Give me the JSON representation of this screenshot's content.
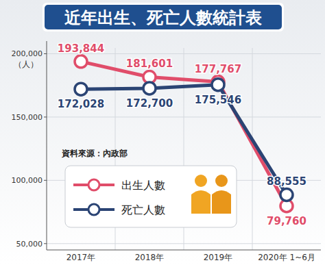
{
  "chart_data": {
    "type": "line",
    "title": "近年出生、死亡人數統計表",
    "y_label": "（人）",
    "source": "資料來源：內政部",
    "categories": [
      "2017年",
      "2018年",
      "2019年",
      "2020年 1~6月"
    ],
    "series": [
      {
        "name": "出生人數",
        "color": "#e04d6a",
        "marker": "circle",
        "values": [
          193844,
          181601,
          177767,
          79760
        ],
        "value_labels": [
          "193,844",
          "181,601",
          "177,767",
          "79,760"
        ]
      },
      {
        "name": "死亡人數",
        "color": "#2b4474",
        "marker": "circle",
        "values": [
          172028,
          172700,
          175546,
          88555
        ],
        "value_labels": [
          "172,028",
          "172,700",
          "175,546",
          "88,555"
        ]
      }
    ],
    "ylim": [
      45000,
      210000
    ],
    "yticks": [
      {
        "value": 50000,
        "label": "50,000"
      },
      {
        "value": 100000,
        "label": "100,000"
      },
      {
        "value": 150000,
        "label": "150,000"
      },
      {
        "value": 200000,
        "label": "200,000"
      }
    ],
    "grid": true,
    "legend": "left",
    "data_labels": true
  }
}
